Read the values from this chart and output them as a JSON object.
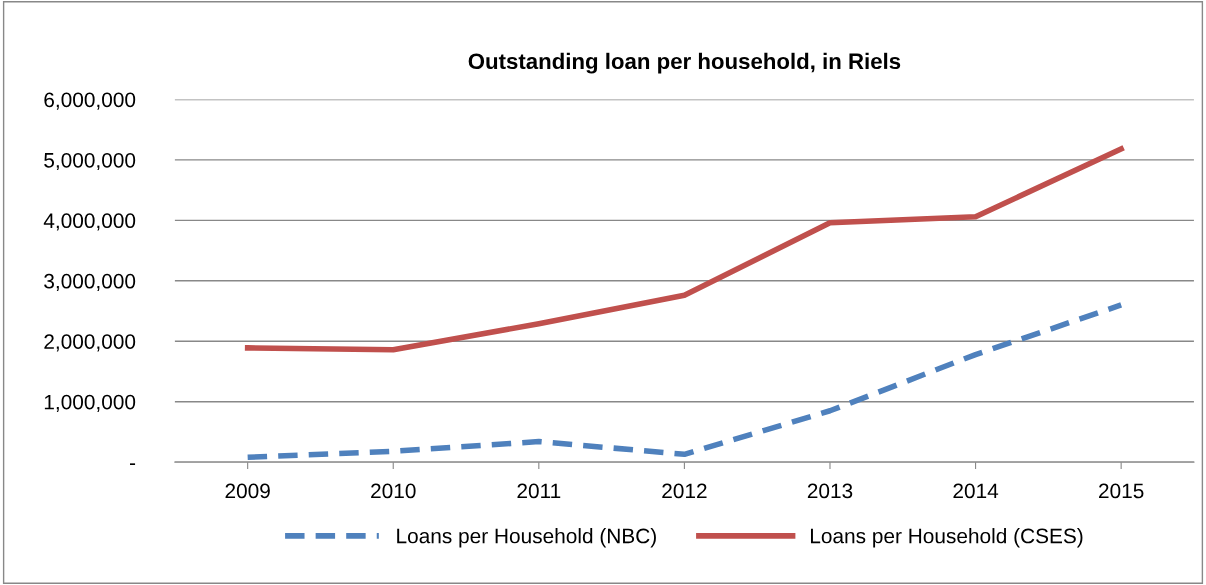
{
  "chart_data": {
    "type": "line",
    "title": "Outstanding loan per household, in Riels",
    "categories": [
      "2009",
      "2010",
      "2011",
      "2012",
      "2013",
      "2014",
      "2015"
    ],
    "series": [
      {
        "name": "Loans per Household (NBC)",
        "color": "#4f81bd",
        "line_style": "dashed",
        "values": [
          80000,
          180000,
          340000,
          130000,
          850000,
          1780000,
          2600000
        ]
      },
      {
        "name": "Loans per Household (CSES)",
        "color": "#c0504d",
        "line_style": "solid",
        "values": [
          1890000,
          1860000,
          2290000,
          2760000,
          3960000,
          4060000,
          5180000
        ]
      }
    ],
    "ylim": [
      0,
      6000000
    ],
    "yticks": [
      {
        "value": 0,
        "label": "-"
      },
      {
        "value": 1000000,
        "label": "1,000,000"
      },
      {
        "value": 2000000,
        "label": "2,000,000"
      },
      {
        "value": 3000000,
        "label": "3,000,000"
      },
      {
        "value": 4000000,
        "label": "4,000,000"
      },
      {
        "value": 5000000,
        "label": "5,000,000"
      },
      {
        "value": 6000000,
        "label": "6,000,000"
      }
    ],
    "grid": "y",
    "legend": "bottom",
    "marker": "none"
  }
}
